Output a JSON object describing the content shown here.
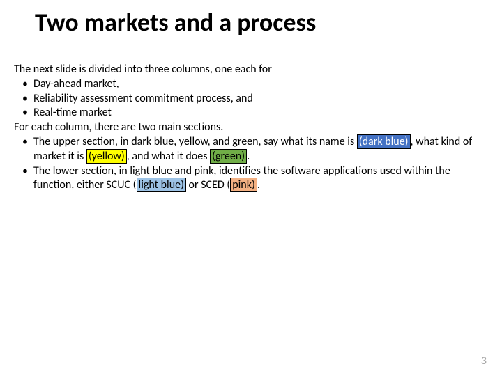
{
  "title": "Two markets and a process",
  "intro": "The next slide is divided into three columns, one each for",
  "bullets1": [
    "Day-ahead market,",
    "Reliability assessment commitment process, and",
    "Real-time market"
  ],
  "mid": "For each column, there are two main sections.",
  "upper_pre": "The upper section, in dark blue, yellow, and green, say what its name is ",
  "hl_darkblue": "(dark blue)",
  "upper_mid1": ", what kind of market it is ",
  "hl_yellow": "(yellow)",
  "upper_mid2": ", and what it does ",
  "hl_green": "(green)",
  "upper_end": ".",
  "lower_pre": "The lower section, in light blue and pink, identifies the software applications used within the function, either SCUC (",
  "hl_lightblue": "light blue)",
  "lower_mid": " or SCED (",
  "hl_pink": "pink)",
  "lower_end": ".",
  "page_number": "3",
  "colors": {
    "darkblue": "#4472c4",
    "yellow": "#ffff00",
    "green": "#70ad47",
    "lightblue": "#9dc3e6",
    "pink": "#f4b183"
  }
}
